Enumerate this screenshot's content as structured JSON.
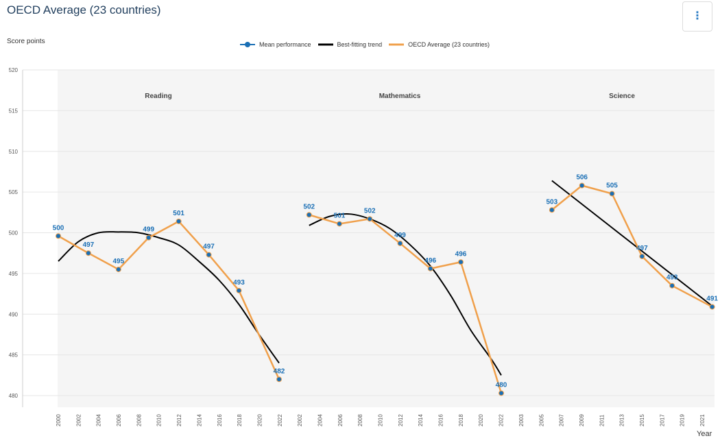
{
  "header": {
    "title": "OECD Average (23 countries)",
    "menu_icon": "vertical-ellipsis-icon",
    "menu_glyph": "⋮"
  },
  "legend": {
    "mean_label": "Mean performance",
    "trend_label": "Best-fitting trend",
    "avg_label": "OECD Average (23 countries)"
  },
  "colors": {
    "mean": "#1a6fb5",
    "trend": "#000000",
    "avg": "#f0a04b",
    "panel_bg": "#f5f5f5",
    "grid": "#e6e6e6"
  },
  "chart_data": {
    "type": "line",
    "ylabel": "Score points",
    "xlabel": "Year",
    "ylim": [
      480,
      520
    ],
    "yticks": [
      480,
      485,
      490,
      495,
      500,
      505,
      510,
      515,
      520
    ],
    "x_tick_labels": [
      "2000",
      "2002",
      "2004",
      "2006",
      "2008",
      "2010",
      "2012",
      "2014",
      "2016",
      "2018",
      "2020",
      "2022",
      "2002",
      "2004",
      "2006",
      "2008",
      "2010",
      "2012",
      "2014",
      "2016",
      "2018",
      "2020",
      "2022",
      "2003",
      "2005",
      "2007",
      "2009",
      "2011",
      "2013",
      "2015",
      "2017",
      "2019",
      "2021"
    ],
    "panels": [
      {
        "name": "Reading",
        "years": [
          2000,
          2003,
          2006,
          2009,
          2012,
          2015,
          2018,
          2022
        ],
        "values": [
          499.6,
          497.5,
          495.5,
          499.4,
          501.4,
          497.3,
          492.9,
          482.0
        ],
        "labels": [
          "500",
          "497",
          "495",
          "499",
          "501",
          "497",
          "493",
          "482"
        ],
        "trend_years": [
          2000,
          2002,
          2004,
          2006,
          2008,
          2010,
          2012,
          2014,
          2016,
          2018,
          2020,
          2022
        ],
        "trend_values": [
          496.5,
          498.9,
          500.0,
          500.1,
          500.0,
          499.4,
          498.5,
          496.5,
          494.2,
          491.2,
          487.5,
          484.0
        ]
      },
      {
        "name": "Mathematics",
        "years": [
          2003,
          2006,
          2009,
          2012,
          2015,
          2018,
          2022
        ],
        "values": [
          502.2,
          501.1,
          501.7,
          498.7,
          495.6,
          496.4,
          480.3
        ],
        "labels": [
          "502",
          "501",
          "502",
          "499",
          "496",
          "496",
          "480"
        ],
        "trend_years": [
          2003,
          2005,
          2007,
          2009,
          2011,
          2013,
          2015,
          2017,
          2019,
          2021,
          2022
        ],
        "trend_values": [
          500.9,
          502.0,
          502.3,
          501.7,
          500.5,
          498.5,
          495.9,
          492.3,
          488.0,
          484.5,
          482.5
        ]
      },
      {
        "name": "Science",
        "years": [
          2006,
          2009,
          2012,
          2015,
          2018,
          2022
        ],
        "values": [
          502.8,
          505.8,
          504.8,
          497.1,
          493.5,
          490.9
        ],
        "labels": [
          "503",
          "506",
          "505",
          "497",
          "493",
          "491"
        ],
        "trend_years": [
          2006,
          2022
        ],
        "trend_values": [
          506.4,
          491.0
        ]
      }
    ]
  }
}
